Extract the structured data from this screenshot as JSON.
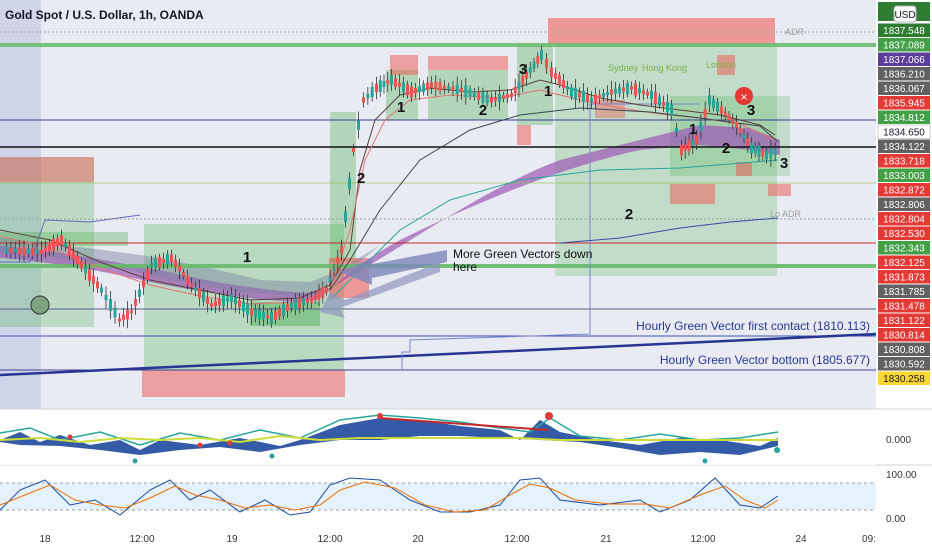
{
  "header": {
    "title": "Gold Spot / U.S. Dollar, 1h, OANDA",
    "currency_button": "USD"
  },
  "chart_data": {
    "type": "candlestick",
    "symbol": "Gold Spot / U.S. Dollar",
    "interval": "1h",
    "broker": "OANDA",
    "currency": "USD",
    "x_tick_labels": [
      "18",
      "12:00",
      "19",
      "12:00",
      "20",
      "12:00",
      "21",
      "12:00",
      "24",
      "09:"
    ],
    "price_axis_labels": [
      {
        "value": "1837.548",
        "color": "#2e7d32"
      },
      {
        "value": "1837.089",
        "color": "#43a047"
      },
      {
        "value": "1837.066",
        "color": "#5c3d99"
      },
      {
        "value": "1836.210",
        "color": "#616161"
      },
      {
        "value": "1836.067",
        "color": "#616161"
      },
      {
        "value": "1835.945",
        "color": "#e53935"
      },
      {
        "value": "1834.812",
        "color": "#43a047"
      },
      {
        "value": "1834.650",
        "color": "#ffffff"
      },
      {
        "value": "1834.122",
        "color": "#616161"
      },
      {
        "value": "1833.718",
        "color": "#e53935"
      },
      {
        "value": "1833.003",
        "color": "#43a047"
      },
      {
        "value": "1832.872",
        "color": "#e53935"
      },
      {
        "value": "1832.806",
        "color": "#616161"
      },
      {
        "value": "1832.804",
        "color": "#e53935"
      },
      {
        "value": "1832.530",
        "color": "#e53935"
      },
      {
        "value": "1832.343",
        "color": "#43a047"
      },
      {
        "value": "1832.125",
        "color": "#e53935"
      },
      {
        "value": "1831.873",
        "color": "#e53935"
      },
      {
        "value": "1831.785",
        "color": "#616161"
      },
      {
        "value": "1831.478",
        "color": "#e53935"
      },
      {
        "value": "1831.122",
        "color": "#e53935"
      },
      {
        "value": "1830.814",
        "color": "#e53935"
      },
      {
        "value": "1830.808",
        "color": "#616161"
      },
      {
        "value": "1830.592",
        "color": "#616161"
      },
      {
        "value": "1830.258",
        "color": "#fdd835"
      }
    ],
    "annotations": {
      "wave_labels": [
        "1",
        "2",
        "1",
        "2",
        "3",
        "1",
        "1",
        "2",
        "3",
        "2",
        "3"
      ],
      "arrow_text_line1": "More Green Vectors down",
      "arrow_text_line2": "here",
      "line_label_1": "Hourly Green Vector first contact (1810.113)",
      "line_label_2": "Hourly Green Vector bottom (1805.677)",
      "session_labels": [
        "Sydney",
        "Hong Kong",
        "London"
      ],
      "adr_high_label": "ADR",
      "adr_low_label": "Lo ADR"
    },
    "oscillator_1": {
      "level_labels": [
        "0.000"
      ]
    },
    "oscillator_2": {
      "level_labels": [
        "100.00",
        "0.00"
      ]
    },
    "colors": {
      "bull": "#26a69a",
      "bear": "#ef5350",
      "green_zone": "#4caf50",
      "red_zone": "#ef5350",
      "purple_cloud": "#8e44ad",
      "vector_line": "#3f51b5"
    }
  }
}
